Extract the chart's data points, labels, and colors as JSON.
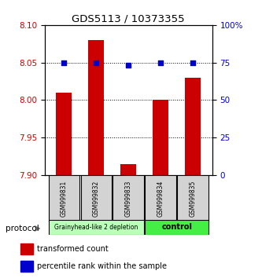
{
  "title": "GDS5113 / 10373355",
  "samples": [
    "GSM999831",
    "GSM999832",
    "GSM999833",
    "GSM999834",
    "GSM999835"
  ],
  "bar_values": [
    8.01,
    8.08,
    7.915,
    8.0,
    8.03
  ],
  "percentile_values": [
    75,
    75,
    73,
    75,
    75
  ],
  "ylim_left": [
    7.9,
    8.1
  ],
  "ylim_right": [
    0,
    100
  ],
  "yticks_left": [
    7.9,
    7.95,
    8.0,
    8.05,
    8.1
  ],
  "yticks_right": [
    0,
    25,
    50,
    75,
    100
  ],
  "ytick_right_labels": [
    "0",
    "25",
    "50",
    "75",
    "100%"
  ],
  "bar_color": "#cc0000",
  "dot_color": "#0000cc",
  "group1_label": "Grainyhead-like 2 depletion",
  "group2_label": "control",
  "group1_color": "#bbffbb",
  "group2_color": "#44ee44",
  "protocol_label": "protocol",
  "legend_bar_label": "transformed count",
  "legend_dot_label": "percentile rank within the sample"
}
